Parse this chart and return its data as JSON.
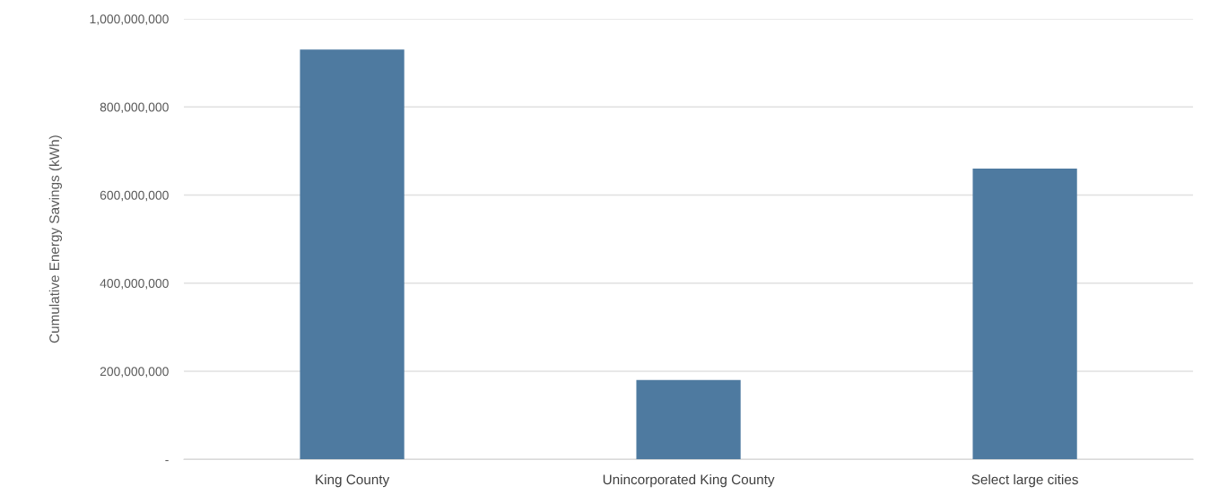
{
  "chart_data": {
    "type": "bar",
    "ylabel": "Cumulative Energy Savings (kWh)",
    "categories": [
      "King County",
      "Unincorporated King County",
      "Select large cities"
    ],
    "values": [
      930000000,
      180000000,
      660000000
    ],
    "color": "#4e7aa0",
    "ylim": [
      0,
      1000000000
    ],
    "yticks": [
      {
        "value": 0,
        "label": "-"
      },
      {
        "value": 200000000,
        "label": "200,000,000"
      },
      {
        "value": 400000000,
        "label": "400,000,000"
      },
      {
        "value": 600000000,
        "label": "600,000,000"
      },
      {
        "value": 800000000,
        "label": "800,000,000"
      },
      {
        "value": 1000000000,
        "label": "1,000,000,000"
      }
    ],
    "grid": "y"
  }
}
